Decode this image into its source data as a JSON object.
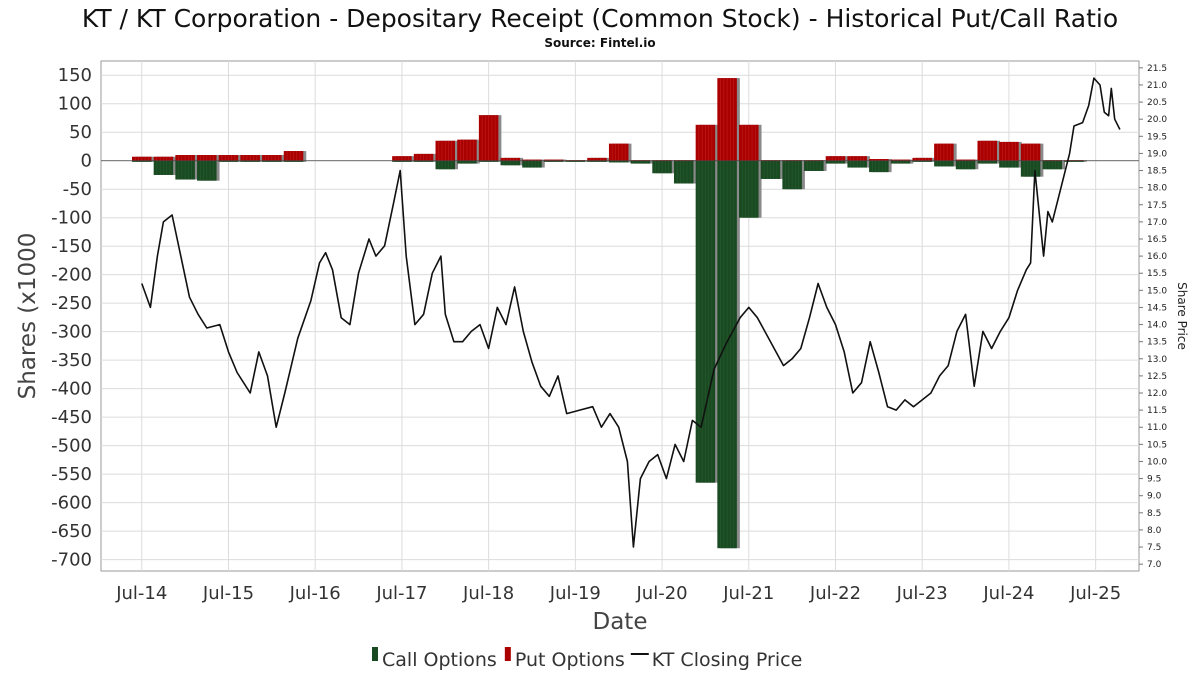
{
  "chart_data": {
    "type": "bar",
    "title": "KT / KT Corporation - Depositary Receipt (Common Stock) - Historical Put/Call Ratio",
    "subtitle": "Source: Fintel.io",
    "xlabel": "Date",
    "ylabel": "Shares (x1000",
    "y2label": "Share Price",
    "ylim": [
      -720,
      175
    ],
    "y2lim": [
      6.8,
      21.7
    ],
    "yticks": [
      150,
      100,
      50,
      0,
      -50,
      -100,
      -150,
      -200,
      -250,
      -300,
      -350,
      -400,
      -450,
      -500,
      -550,
      -600,
      -650,
      -700
    ],
    "y2ticks": [
      "21.5",
      "21.0",
      "20.5",
      "20.0",
      "19.5",
      "19.0",
      "18.5",
      "18.0",
      "17.5",
      "17.0",
      "16.5",
      "16.0",
      "15.5",
      "15.0",
      "14.5",
      "14.0",
      "13.5",
      "13.0",
      "12.5",
      "12.0",
      "11.5",
      "11.0",
      "10.5",
      "10.0",
      "9.5",
      "9.0",
      "8.5",
      "8.0",
      "7.5",
      "7.0"
    ],
    "xticks": [
      {
        "label": "Jul-14",
        "t": 2014.5
      },
      {
        "label": "Jul-15",
        "t": 2015.5
      },
      {
        "label": "Jul-16",
        "t": 2016.5
      },
      {
        "label": "Jul-17",
        "t": 2017.5
      },
      {
        "label": "Jul-18",
        "t": 2018.5
      },
      {
        "label": "Jul-19",
        "t": 2019.5
      },
      {
        "label": "Jul-20",
        "t": 2020.5
      },
      {
        "label": "Jul-21",
        "t": 2021.5
      },
      {
        "label": "Jul-22",
        "t": 2022.5
      },
      {
        "label": "Jul-23",
        "t": 2023.5
      },
      {
        "label": "Jul-24",
        "t": 2024.5
      },
      {
        "label": "Jul-25",
        "t": 2025.5
      }
    ],
    "xlim": [
      2014.03,
      2026.0
    ],
    "grid": true,
    "legend_position": "bottom",
    "series": [
      {
        "name": "Put Options",
        "color": "#aa0000",
        "points": [
          [
            2014.5,
            7
          ],
          [
            2014.75,
            7
          ],
          [
            2015.0,
            10
          ],
          [
            2015.25,
            10
          ],
          [
            2015.5,
            10
          ],
          [
            2015.75,
            10
          ],
          [
            2016.0,
            10
          ],
          [
            2016.25,
            17
          ],
          [
            2017.5,
            8
          ],
          [
            2017.75,
            12
          ],
          [
            2018.0,
            35
          ],
          [
            2018.25,
            37
          ],
          [
            2018.5,
            80
          ],
          [
            2018.75,
            5
          ],
          [
            2019.0,
            2
          ],
          [
            2019.25,
            2
          ],
          [
            2019.5,
            1
          ],
          [
            2019.75,
            5
          ],
          [
            2020.0,
            30
          ],
          [
            2020.25,
            1
          ],
          [
            2020.5,
            1
          ],
          [
            2020.75,
            1
          ],
          [
            2021.0,
            63
          ],
          [
            2021.25,
            145
          ],
          [
            2021.5,
            63
          ],
          [
            2021.75,
            1
          ],
          [
            2022.0,
            1
          ],
          [
            2022.25,
            1
          ],
          [
            2022.5,
            8
          ],
          [
            2022.75,
            8
          ],
          [
            2023.0,
            3
          ],
          [
            2023.25,
            2
          ],
          [
            2023.5,
            5
          ],
          [
            2023.75,
            30
          ],
          [
            2024.0,
            2
          ],
          [
            2024.25,
            35
          ],
          [
            2024.5,
            33
          ],
          [
            2024.75,
            30
          ],
          [
            2025.0,
            1
          ],
          [
            2025.25,
            1
          ]
        ]
      },
      {
        "name": "Call Options",
        "color": "#1a4a22",
        "points": [
          [
            2014.5,
            -2
          ],
          [
            2014.75,
            -25
          ],
          [
            2015.0,
            -33
          ],
          [
            2015.25,
            -35
          ],
          [
            2015.5,
            -2
          ],
          [
            2015.75,
            -2
          ],
          [
            2016.0,
            -2
          ],
          [
            2016.25,
            -2
          ],
          [
            2017.5,
            -2
          ],
          [
            2017.75,
            -2
          ],
          [
            2018.0,
            -15
          ],
          [
            2018.25,
            -5
          ],
          [
            2018.5,
            -2
          ],
          [
            2018.75,
            -8
          ],
          [
            2019.0,
            -12
          ],
          [
            2019.25,
            -2
          ],
          [
            2019.5,
            -2
          ],
          [
            2019.75,
            -2
          ],
          [
            2020.0,
            -3
          ],
          [
            2020.25,
            -5
          ],
          [
            2020.5,
            -22
          ],
          [
            2020.75,
            -40
          ],
          [
            2021.0,
            -565
          ],
          [
            2021.25,
            -680
          ],
          [
            2021.5,
            -100
          ],
          [
            2021.75,
            -32
          ],
          [
            2022.0,
            -50
          ],
          [
            2022.25,
            -18
          ],
          [
            2022.5,
            -5
          ],
          [
            2022.75,
            -12
          ],
          [
            2023.0,
            -20
          ],
          [
            2023.25,
            -5
          ],
          [
            2023.5,
            -2
          ],
          [
            2023.75,
            -10
          ],
          [
            2024.0,
            -15
          ],
          [
            2024.25,
            -5
          ],
          [
            2024.5,
            -12
          ],
          [
            2024.75,
            -28
          ],
          [
            2025.0,
            -15
          ],
          [
            2025.25,
            -2
          ]
        ]
      },
      {
        "name": "KT Closing Price",
        "color": "#111111",
        "points": [
          [
            2014.5,
            15.2
          ],
          [
            2014.6,
            14.5
          ],
          [
            2014.68,
            16.0
          ],
          [
            2014.75,
            17.0
          ],
          [
            2014.85,
            17.2
          ],
          [
            2014.95,
            16.0
          ],
          [
            2015.05,
            14.8
          ],
          [
            2015.15,
            14.3
          ],
          [
            2015.25,
            13.9
          ],
          [
            2015.4,
            14.0
          ],
          [
            2015.5,
            13.2
          ],
          [
            2015.6,
            12.6
          ],
          [
            2015.75,
            12.0
          ],
          [
            2015.85,
            13.2
          ],
          [
            2015.95,
            12.5
          ],
          [
            2016.05,
            11.0
          ],
          [
            2016.15,
            12.0
          ],
          [
            2016.3,
            13.6
          ],
          [
            2016.45,
            14.7
          ],
          [
            2016.55,
            15.8
          ],
          [
            2016.62,
            16.1
          ],
          [
            2016.7,
            15.6
          ],
          [
            2016.8,
            14.2
          ],
          [
            2016.9,
            14.0
          ],
          [
            2017.0,
            15.5
          ],
          [
            2017.12,
            16.5
          ],
          [
            2017.2,
            16.0
          ],
          [
            2017.3,
            16.3
          ],
          [
            2017.4,
            17.5
          ],
          [
            2017.48,
            18.5
          ],
          [
            2017.55,
            16.0
          ],
          [
            2017.65,
            14.0
          ],
          [
            2017.75,
            14.3
          ],
          [
            2017.85,
            15.5
          ],
          [
            2017.95,
            16.0
          ],
          [
            2018.0,
            14.3
          ],
          [
            2018.1,
            13.5
          ],
          [
            2018.2,
            13.5
          ],
          [
            2018.3,
            13.8
          ],
          [
            2018.4,
            14.0
          ],
          [
            2018.5,
            13.3
          ],
          [
            2018.6,
            14.5
          ],
          [
            2018.7,
            14.0
          ],
          [
            2018.8,
            15.1
          ],
          [
            2018.9,
            13.8
          ],
          [
            2019.0,
            12.9
          ],
          [
            2019.1,
            12.2
          ],
          [
            2019.2,
            11.9
          ],
          [
            2019.3,
            12.5
          ],
          [
            2019.4,
            11.4
          ],
          [
            2019.55,
            11.5
          ],
          [
            2019.7,
            11.6
          ],
          [
            2019.8,
            11.0
          ],
          [
            2019.9,
            11.4
          ],
          [
            2020.0,
            11.0
          ],
          [
            2020.1,
            10.0
          ],
          [
            2020.17,
            7.5
          ],
          [
            2020.25,
            9.5
          ],
          [
            2020.35,
            10.0
          ],
          [
            2020.45,
            10.2
          ],
          [
            2020.55,
            9.5
          ],
          [
            2020.65,
            10.5
          ],
          [
            2020.75,
            10.0
          ],
          [
            2020.85,
            11.2
          ],
          [
            2020.95,
            11.0
          ],
          [
            2021.1,
            12.7
          ],
          [
            2021.25,
            13.5
          ],
          [
            2021.4,
            14.2
          ],
          [
            2021.5,
            14.5
          ],
          [
            2021.6,
            14.2
          ],
          [
            2021.75,
            13.5
          ],
          [
            2021.9,
            12.8
          ],
          [
            2022.0,
            13.0
          ],
          [
            2022.1,
            13.3
          ],
          [
            2022.2,
            14.2
          ],
          [
            2022.3,
            15.2
          ],
          [
            2022.4,
            14.5
          ],
          [
            2022.5,
            14.0
          ],
          [
            2022.6,
            13.2
          ],
          [
            2022.7,
            12.0
          ],
          [
            2022.8,
            12.3
          ],
          [
            2022.9,
            13.5
          ],
          [
            2023.0,
            12.6
          ],
          [
            2023.1,
            11.6
          ],
          [
            2023.2,
            11.5
          ],
          [
            2023.3,
            11.8
          ],
          [
            2023.4,
            11.6
          ],
          [
            2023.5,
            11.8
          ],
          [
            2023.6,
            12.0
          ],
          [
            2023.7,
            12.5
          ],
          [
            2023.8,
            12.8
          ],
          [
            2023.9,
            13.8
          ],
          [
            2024.0,
            14.3
          ],
          [
            2024.1,
            12.2
          ],
          [
            2024.2,
            13.8
          ],
          [
            2024.3,
            13.3
          ],
          [
            2024.4,
            13.8
          ],
          [
            2024.5,
            14.2
          ],
          [
            2024.6,
            15.0
          ],
          [
            2024.7,
            15.6
          ],
          [
            2024.75,
            15.8
          ],
          [
            2024.8,
            18.5
          ],
          [
            2024.9,
            16.0
          ],
          [
            2024.95,
            17.3
          ],
          [
            2025.0,
            17.0
          ],
          [
            2025.1,
            18.0
          ],
          [
            2025.2,
            19.0
          ],
          [
            2025.25,
            19.8
          ],
          [
            2025.35,
            19.9
          ],
          [
            2025.42,
            20.4
          ],
          [
            2025.48,
            21.2
          ],
          [
            2025.55,
            21.0
          ],
          [
            2025.6,
            20.2
          ],
          [
            2025.65,
            20.1
          ],
          [
            2025.68,
            20.9
          ],
          [
            2025.72,
            20.0
          ],
          [
            2025.78,
            19.7
          ]
        ]
      }
    ]
  },
  "legend": [
    {
      "label": "Call Options",
      "color": "#1a4a22",
      "kind": "bar"
    },
    {
      "label": "Put Options",
      "color": "#aa0000",
      "kind": "bar"
    },
    {
      "label": "KT Closing Price",
      "color": "#111111",
      "kind": "line"
    }
  ]
}
